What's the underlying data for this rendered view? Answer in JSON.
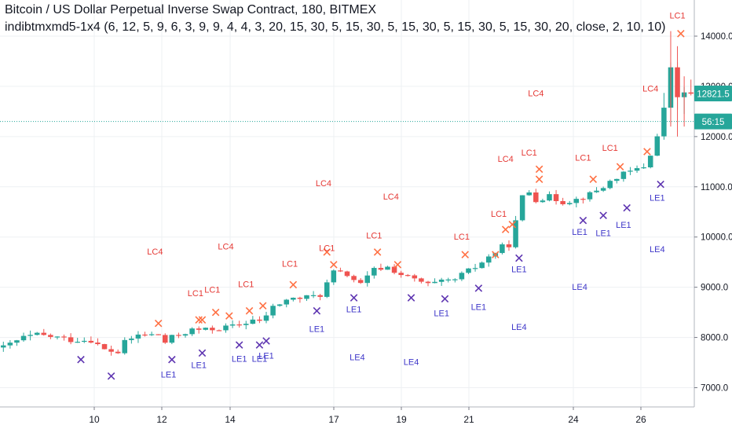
{
  "header": {
    "symbol_line": "Bitcoin / US Dollar Perpetual Inverse Swap Contract, 180, BITMEX",
    "indicator_line": "indibtmxmd5-1x4 (6, 12, 5, 9, 6, 3, 9, 9, 4, 4, 3, 20, 15, 30, 5, 15, 30, 5, 15, 30, 5, 15, 30, 5, 15, 30, 20, close, 2, 10, 10)"
  },
  "colors": {
    "up": "#26a69a",
    "down": "#ef5350",
    "lc_label": "#e53935",
    "lc_marker": "#ff7043",
    "le_label": "#3f37c9",
    "le_marker": "#5e35b1",
    "price_tag": "#26a69a",
    "grid": "#eef0f3"
  },
  "chart_data": {
    "type": "candlestick",
    "y_axis": {
      "ticks": [
        "7000.0",
        "8000.0",
        "9000.0",
        "10000.0",
        "11000.0",
        "12000.0",
        "13000.0",
        "14000.0"
      ],
      "range": [
        6900,
        14500
      ]
    },
    "x_axis": {
      "ticks": [
        "10",
        "12",
        "14",
        "17",
        "19",
        "21",
        "24",
        "26"
      ]
    },
    "last_price": "12821.5",
    "countdown": "56:15",
    "price_line_level": 12300,
    "close_path": [
      [
        0,
        7800
      ],
      [
        3,
        8000
      ],
      [
        5,
        8050
      ],
      [
        8,
        8000
      ],
      [
        10,
        7950
      ],
      [
        13,
        7950
      ],
      [
        15,
        7750
      ],
      [
        17,
        7700
      ],
      [
        18,
        7900
      ],
      [
        20,
        8050
      ],
      [
        23,
        8050
      ],
      [
        24,
        7900
      ],
      [
        25,
        8000
      ],
      [
        28,
        8150
      ],
      [
        30,
        8150
      ],
      [
        33,
        8200
      ],
      [
        35,
        8250
      ],
      [
        37,
        8350
      ],
      [
        38,
        8300
      ],
      [
        40,
        8600
      ],
      [
        42,
        8750
      ],
      [
        45,
        8800
      ],
      [
        47,
        8850
      ],
      [
        49,
        9300
      ],
      [
        51,
        9250
      ],
      [
        53,
        9050
      ],
      [
        55,
        9350
      ],
      [
        57,
        9400
      ],
      [
        59,
        9250
      ],
      [
        61,
        9150
      ],
      [
        63,
        9050
      ],
      [
        65,
        9100
      ],
      [
        67,
        9150
      ],
      [
        68,
        9250
      ],
      [
        70,
        9400
      ],
      [
        72,
        9600
      ],
      [
        74,
        9800
      ],
      [
        75,
        9850
      ],
      [
        76,
        10300
      ],
      [
        77,
        10800
      ],
      [
        78,
        10900
      ],
      [
        79,
        10750
      ],
      [
        81,
        10800
      ],
      [
        83,
        10700
      ],
      [
        85,
        10750
      ],
      [
        87,
        10850
      ],
      [
        89,
        11000
      ],
      [
        91,
        11200
      ],
      [
        93,
        11300
      ],
      [
        95,
        11400
      ],
      [
        96,
        11700
      ],
      [
        97,
        12000
      ],
      [
        98,
        12500
      ],
      [
        99,
        13400
      ],
      [
        100,
        12700
      ],
      [
        101,
        12900
      ],
      [
        102,
        12821
      ]
    ],
    "annotations": [
      {
        "text": "LC1",
        "x": 100,
        "y": 14350,
        "kind": "lc"
      },
      {
        "text": "LC4",
        "x": 96,
        "y": 12900,
        "kind": "lc"
      },
      {
        "text": "LC4",
        "x": 79,
        "y": 12800,
        "kind": "lc"
      },
      {
        "text": "LC1",
        "x": 90,
        "y": 11720,
        "kind": "lc"
      },
      {
        "text": "LC1",
        "x": 86,
        "y": 11520,
        "kind": "lc"
      },
      {
        "text": "LC1",
        "x": 78,
        "y": 11620,
        "kind": "lc"
      },
      {
        "text": "LC4",
        "x": 74.5,
        "y": 11500,
        "kind": "lc"
      },
      {
        "text": "LC4",
        "x": 47.5,
        "y": 11010,
        "kind": "lc"
      },
      {
        "text": "LC4",
        "x": 57.5,
        "y": 10750,
        "kind": "lc"
      },
      {
        "text": "LC1",
        "x": 73.5,
        "y": 10400,
        "kind": "lc"
      },
      {
        "text": "LC1",
        "x": 68,
        "y": 9950,
        "kind": "lc"
      },
      {
        "text": "LC1",
        "x": 55,
        "y": 9970,
        "kind": "lc"
      },
      {
        "text": "LC4",
        "x": 22.5,
        "y": 9650,
        "kind": "lc"
      },
      {
        "text": "LC4",
        "x": 33,
        "y": 9750,
        "kind": "lc"
      },
      {
        "text": "LC1",
        "x": 48,
        "y": 9720,
        "kind": "lc"
      },
      {
        "text": "LC1",
        "x": 42.5,
        "y": 9410,
        "kind": "lc"
      },
      {
        "text": "LC1",
        "x": 36,
        "y": 9000,
        "kind": "lc"
      },
      {
        "text": "LC1",
        "x": 31,
        "y": 8890,
        "kind": "lc"
      },
      {
        "text": "LC1",
        "x": 28.5,
        "y": 8820,
        "kind": "lc"
      },
      {
        "text": "LE1",
        "x": 97,
        "y": 10720,
        "kind": "le"
      },
      {
        "text": "LE1",
        "x": 85.5,
        "y": 10040,
        "kind": "le"
      },
      {
        "text": "LE1",
        "x": 89,
        "y": 10020,
        "kind": "le"
      },
      {
        "text": "LE1",
        "x": 92,
        "y": 10180,
        "kind": "le"
      },
      {
        "text": "LE4",
        "x": 97,
        "y": 9700,
        "kind": "le"
      },
      {
        "text": "LE1",
        "x": 76.5,
        "y": 9300,
        "kind": "le"
      },
      {
        "text": "LE4",
        "x": 85.5,
        "y": 8950,
        "kind": "le"
      },
      {
        "text": "LE1",
        "x": 70.5,
        "y": 8550,
        "kind": "le"
      },
      {
        "text": "LE1",
        "x": 52,
        "y": 8500,
        "kind": "le"
      },
      {
        "text": "LE1",
        "x": 65,
        "y": 8420,
        "kind": "le"
      },
      {
        "text": "LE4",
        "x": 76.5,
        "y": 8150,
        "kind": "le"
      },
      {
        "text": "LE1",
        "x": 46.5,
        "y": 8110,
        "kind": "le"
      },
      {
        "text": "LE4",
        "x": 52.5,
        "y": 7550,
        "kind": "le"
      },
      {
        "text": "LE4",
        "x": 60.5,
        "y": 7450,
        "kind": "le"
      },
      {
        "text": "LE1",
        "x": 29,
        "y": 7390,
        "kind": "le"
      },
      {
        "text": "LE1",
        "x": 35,
        "y": 7520,
        "kind": "le"
      },
      {
        "text": "LE1",
        "x": 38,
        "y": 7520,
        "kind": "le"
      },
      {
        "text": "LE1",
        "x": 39,
        "y": 7580,
        "kind": "le"
      },
      {
        "text": "LE1",
        "x": 24.5,
        "y": 7200,
        "kind": "le"
      }
    ],
    "markers_lc": [
      [
        100.5,
        14050
      ],
      [
        95.5,
        11700
      ],
      [
        79.5,
        11350
      ],
      [
        79.5,
        11150
      ],
      [
        87.5,
        11150
      ],
      [
        91.5,
        11400
      ],
      [
        74.5,
        10150
      ],
      [
        75.5,
        10250
      ],
      [
        68.5,
        9650
      ],
      [
        73,
        9650
      ],
      [
        58.5,
        9450
      ],
      [
        55.5,
        9700
      ],
      [
        48,
        9700
      ],
      [
        49,
        9450
      ],
      [
        43,
        9050
      ],
      [
        29.5,
        8350
      ],
      [
        31.5,
        8500
      ],
      [
        33.5,
        8430
      ],
      [
        36.5,
        8530
      ],
      [
        38.5,
        8630
      ],
      [
        23,
        8280
      ],
      [
        29,
        8350
      ]
    ],
    "markers_le": [
      [
        97.5,
        11050
      ],
      [
        86,
        10330
      ],
      [
        89,
        10430
      ],
      [
        92.5,
        10580
      ],
      [
        76.5,
        9580
      ],
      [
        70.5,
        8980
      ],
      [
        52,
        8790
      ],
      [
        60.5,
        8790
      ],
      [
        65.5,
        8770
      ],
      [
        46.5,
        8530
      ],
      [
        11.5,
        7560
      ],
      [
        16,
        7230
      ],
      [
        25,
        7560
      ],
      [
        29.5,
        7690
      ],
      [
        35,
        7850
      ],
      [
        38,
        7850
      ],
      [
        39,
        7930
      ]
    ]
  }
}
